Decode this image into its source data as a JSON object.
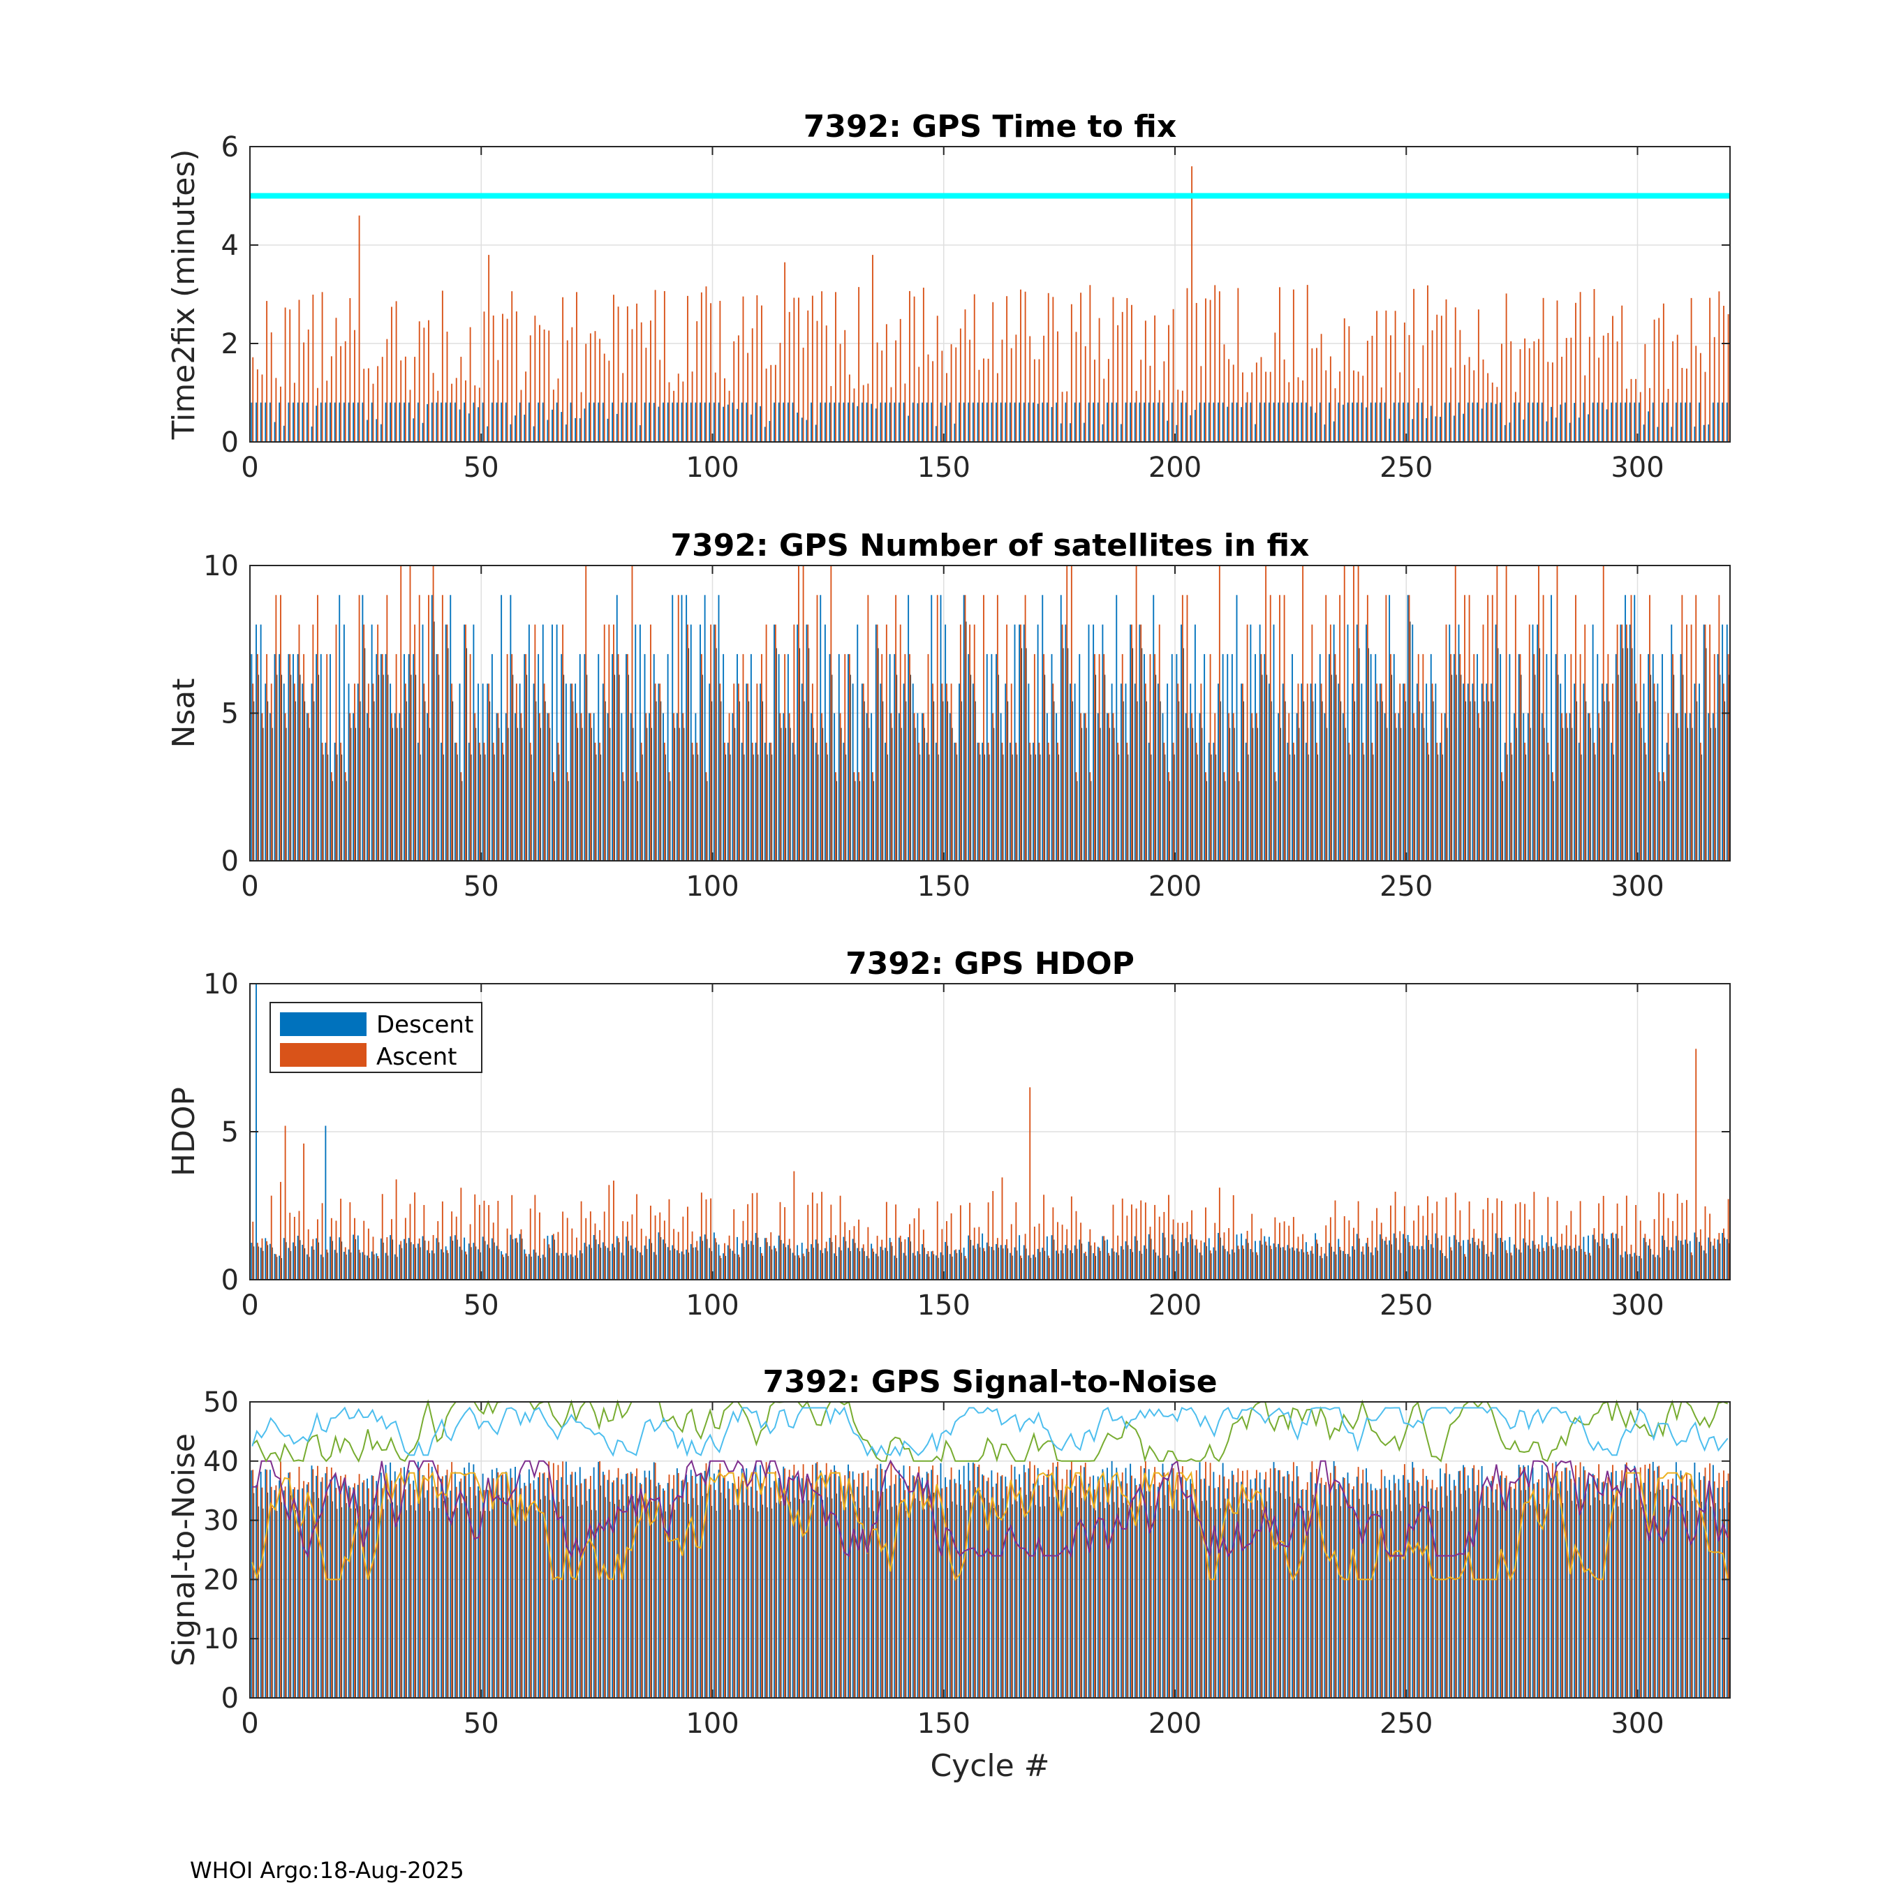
{
  "figure": {
    "footer": "WHOI Argo:18-Aug-2025",
    "xlabel": "Cycle #"
  },
  "colors": {
    "descent": "#0072bd",
    "ascent": "#d95319",
    "threshold": "#00ffff",
    "snr_lines": [
      "#edb120",
      "#7e2f8e",
      "#77ac30",
      "#4dbeee",
      "#0072bd"
    ]
  },
  "legend": {
    "descent": "Descent",
    "ascent": "Ascent"
  },
  "chart_data": [
    {
      "type": "bar",
      "id": "time2fix",
      "title": "7392: GPS Time to fix",
      "ylabel": "Time2fix (minutes)",
      "xlabel": "",
      "xlim": [
        0,
        320
      ],
      "ylim": [
        0,
        6
      ],
      "yticks": [
        0,
        2,
        4,
        6
      ],
      "xticks": [
        0,
        50,
        100,
        150,
        200,
        250,
        300
      ],
      "grid": true,
      "threshold": 5,
      "notable_points": [
        {
          "cycle": 23,
          "series": "Ascent",
          "value": 4.6
        },
        {
          "cycle": 51,
          "series": "Ascent",
          "value": 3.8
        },
        {
          "cycle": 115,
          "series": "Ascent",
          "value": 3.65
        },
        {
          "cycle": 134,
          "series": "Ascent",
          "value": 3.8
        },
        {
          "cycle": 203,
          "series": "Ascent",
          "value": 5.6
        }
      ],
      "series": [
        {
          "name": "Descent",
          "typical_range": [
            0.3,
            0.8
          ]
        },
        {
          "name": "Ascent",
          "typical_range": [
            1.0,
            3.2
          ]
        }
      ]
    },
    {
      "type": "bar",
      "id": "nsat",
      "title": "7392: GPS Number of satellites in fix",
      "ylabel": "Nsat",
      "xlabel": "",
      "xlim": [
        0,
        320
      ],
      "ylim": [
        0,
        10
      ],
      "yticks": [
        0,
        5,
        10
      ],
      "xticks": [
        0,
        50,
        100,
        150,
        200,
        250,
        300
      ],
      "grid": true,
      "series": [
        {
          "name": "Descent",
          "typical_range": [
            4,
            9
          ]
        },
        {
          "name": "Ascent",
          "typical_range": [
            3,
            10
          ]
        }
      ]
    },
    {
      "type": "bar",
      "id": "hdop",
      "title": "7392: GPS HDOP",
      "ylabel": "HDOP",
      "xlabel": "",
      "xlim": [
        0,
        320
      ],
      "ylim": [
        0,
        10
      ],
      "yticks": [
        0,
        5,
        10
      ],
      "xticks": [
        0,
        50,
        100,
        150,
        200,
        250,
        300
      ],
      "grid": true,
      "legend_position": "top-left",
      "notable_points": [
        {
          "cycle": 1,
          "series": "Descent",
          "value": 10
        },
        {
          "cycle": 7,
          "series": "Ascent",
          "value": 5.2
        },
        {
          "cycle": 11,
          "series": "Ascent",
          "value": 4.6
        },
        {
          "cycle": 16,
          "series": "Descent",
          "value": 5.2
        },
        {
          "cycle": 168,
          "series": "Ascent",
          "value": 6.5
        },
        {
          "cycle": 312,
          "series": "Ascent",
          "value": 7.8
        }
      ],
      "series": [
        {
          "name": "Descent",
          "typical_range": [
            0.8,
            1.6
          ]
        },
        {
          "name": "Ascent",
          "typical_range": [
            0.8,
            3.0
          ]
        }
      ]
    },
    {
      "type": "bar+line",
      "id": "snr",
      "title": "7392: GPS Signal-to-Noise",
      "ylabel": "Signal-to-Noise",
      "xlabel": "Cycle #",
      "xlim": [
        0,
        320
      ],
      "ylim": [
        0,
        50
      ],
      "yticks": [
        0,
        10,
        20,
        30,
        40,
        50
      ],
      "xticks": [
        0,
        50,
        100,
        150,
        200,
        250,
        300
      ],
      "grid": true,
      "series": [
        {
          "name": "Descent bars",
          "typical_range": [
            35,
            40
          ]
        },
        {
          "name": "Ascent bars",
          "typical_range": [
            35,
            40
          ]
        },
        {
          "name": "SNR line 1",
          "typical_range": [
            20,
            38
          ]
        },
        {
          "name": "SNR line 2",
          "typical_range": [
            24,
            40
          ]
        },
        {
          "name": "SNR line 3",
          "typical_range": [
            40,
            50
          ]
        },
        {
          "name": "SNR line 4",
          "typical_range": [
            41,
            49
          ]
        }
      ]
    }
  ]
}
